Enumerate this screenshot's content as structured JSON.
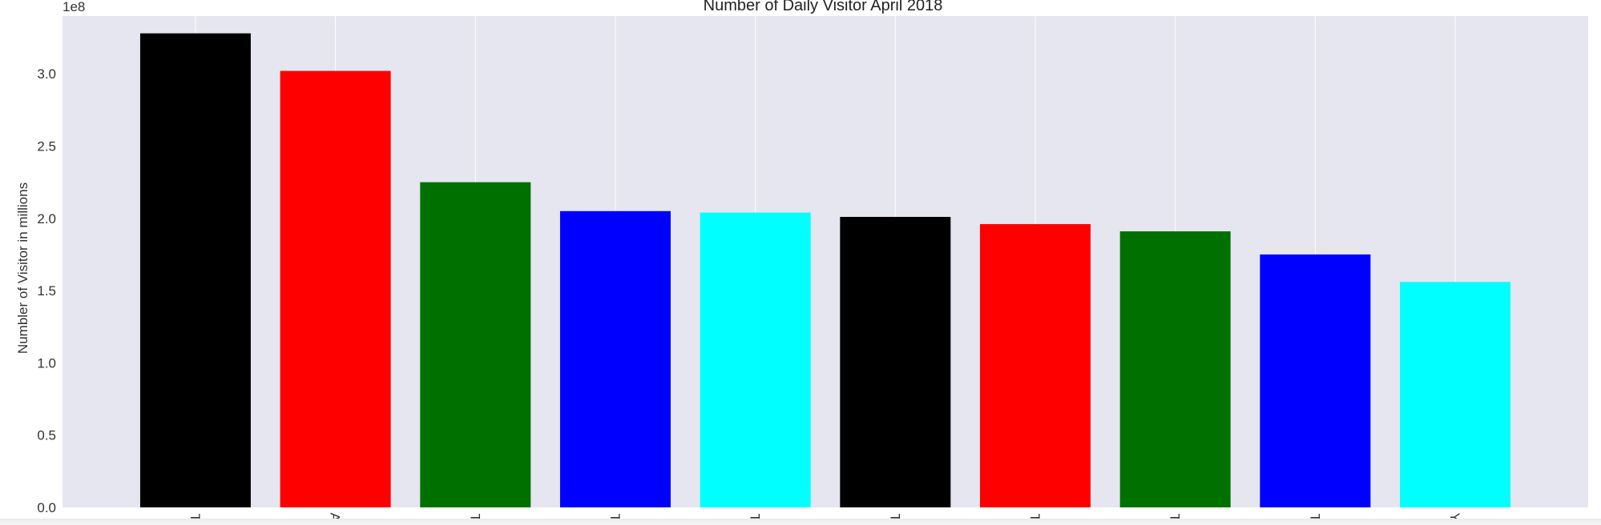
{
  "chart_data": {
    "type": "bar",
    "title": "Number of Daily Visitor April 2018",
    "xlabel": "",
    "ylabel": "Numbler of Visitor in millions",
    "y_offset_label": "1e8",
    "ylim": [
      0,
      3.4
    ],
    "y_ticks": [
      0.0,
      0.5,
      1.0,
      1.5,
      2.0,
      2.5,
      3.0
    ],
    "y_tick_labels": [
      "0.0",
      "0.5",
      "1.0",
      "1.5",
      "2.0",
      "2.5",
      "3.0"
    ],
    "grid": true,
    "categories": [
      "T",
      "A",
      "T",
      "T",
      "T",
      "T",
      "T",
      "T",
      "T",
      "Y"
    ],
    "values": [
      3.28,
      3.02,
      2.25,
      2.05,
      2.04,
      2.01,
      1.96,
      1.91,
      1.75,
      1.56
    ],
    "bar_colors": [
      "#000000",
      "#ff0000",
      "#007000",
      "#0000ff",
      "#00ffff",
      "#000000",
      "#ff0000",
      "#007000",
      "#0000ff",
      "#00ffff"
    ],
    "colors": {
      "background": "#e5e6ef",
      "grid": "#ffffff"
    }
  }
}
